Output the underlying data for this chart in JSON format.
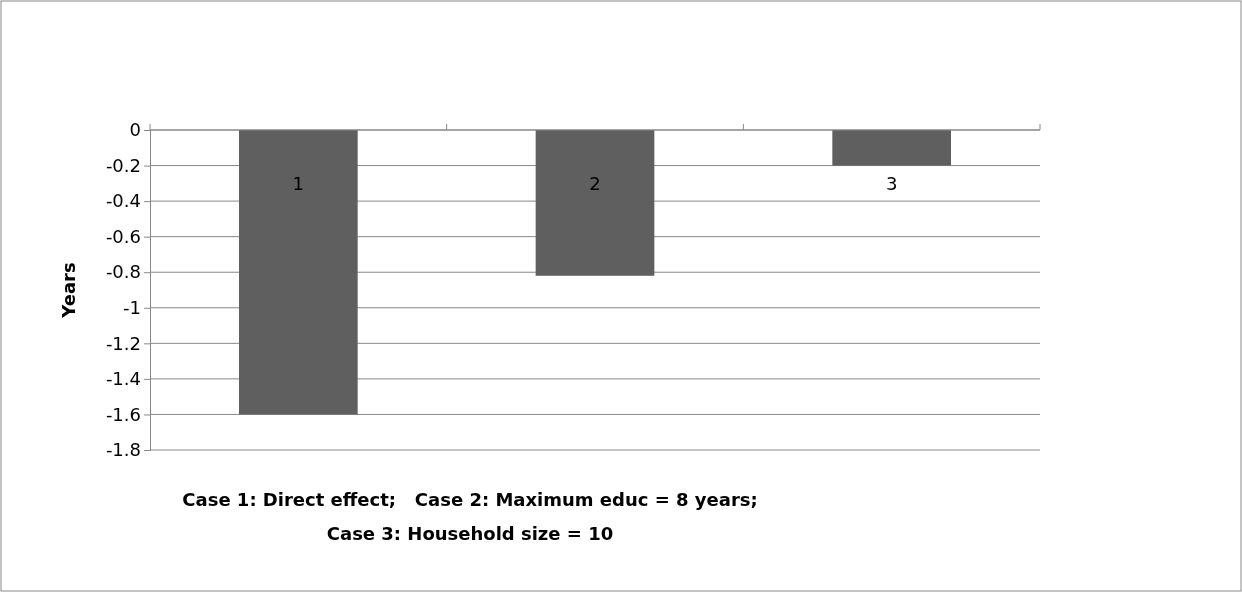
{
  "chart_data": {
    "type": "bar",
    "categories": [
      "1",
      "2",
      "3"
    ],
    "values": [
      -1.6,
      -0.82,
      -0.2
    ],
    "color": "#5f5f5f",
    "ylim": [
      -1.8,
      0
    ],
    "yticks": [
      -1.8,
      -1.6,
      -1.4,
      -1.2,
      -1,
      -0.8,
      -0.6,
      -0.4,
      -0.2,
      0
    ],
    "ylabel": "Years",
    "xlabel": "Case 1: Direct effect;   Case 2: Maximum educ = 8 years;\nCase 3: Household size = 10",
    "grid": "y"
  }
}
